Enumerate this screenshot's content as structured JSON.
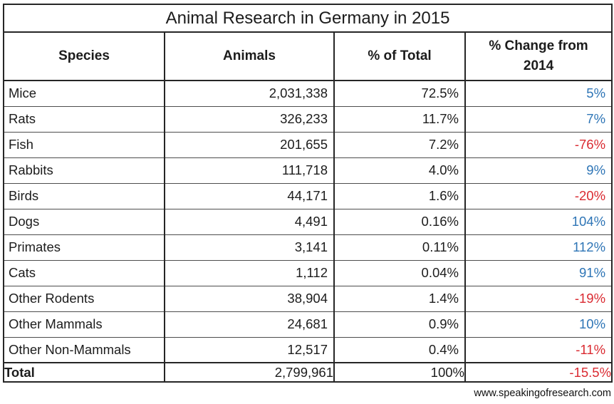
{
  "title": "Animal Research in Germany in 2015",
  "columns": [
    "Species",
    "Animals",
    "% of Total",
    "% Change from 2014"
  ],
  "colors": {
    "increase_text": "#2e75b6",
    "decrease_text": "#da2a31",
    "border_strong": "#262626",
    "border_light": "#4d4d4d",
    "text": "#1c1c1c"
  },
  "chart_data": {
    "type": "table",
    "title": "Animal Research in Germany in 2015",
    "columns": [
      "Species",
      "Animals",
      "% of Total",
      "% Change from 2014"
    ],
    "rows": [
      {
        "species": "Mice",
        "animals": "2,031,338",
        "pct_total": "72.5%",
        "pct_change": "5%",
        "change_dir": "up"
      },
      {
        "species": "Rats",
        "animals": "326,233",
        "pct_total": "11.7%",
        "pct_change": "7%",
        "change_dir": "up"
      },
      {
        "species": "Fish",
        "animals": "201,655",
        "pct_total": "7.2%",
        "pct_change": "-76%",
        "change_dir": "down"
      },
      {
        "species": "Rabbits",
        "animals": "111,718",
        "pct_total": "4.0%",
        "pct_change": "9%",
        "change_dir": "up"
      },
      {
        "species": "Birds",
        "animals": "44,171",
        "pct_total": "1.6%",
        "pct_change": "-20%",
        "change_dir": "down"
      },
      {
        "species": "Dogs",
        "animals": "4,491",
        "pct_total": "0.16%",
        "pct_change": "104%",
        "change_dir": "up"
      },
      {
        "species": "Primates",
        "animals": "3,141",
        "pct_total": "0.11%",
        "pct_change": "112%",
        "change_dir": "up"
      },
      {
        "species": "Cats",
        "animals": "1,112",
        "pct_total": "0.04%",
        "pct_change": "91%",
        "change_dir": "up"
      },
      {
        "species": "Other Rodents",
        "animals": "38,904",
        "pct_total": "1.4%",
        "pct_change": "-19%",
        "change_dir": "down"
      },
      {
        "species": "Other Mammals",
        "animals": "24,681",
        "pct_total": "0.9%",
        "pct_change": "10%",
        "change_dir": "up"
      },
      {
        "species": "Other Non-Mammals",
        "animals": "12,517",
        "pct_total": "0.4%",
        "pct_change": "-11%",
        "change_dir": "down"
      }
    ],
    "total": {
      "label": "Total",
      "animals": "2,799,961",
      "pct_total": "100%",
      "pct_change": "-15.5%",
      "change_dir": "down"
    }
  },
  "footer": {
    "credit": "www.speakingofresearch.com"
  }
}
